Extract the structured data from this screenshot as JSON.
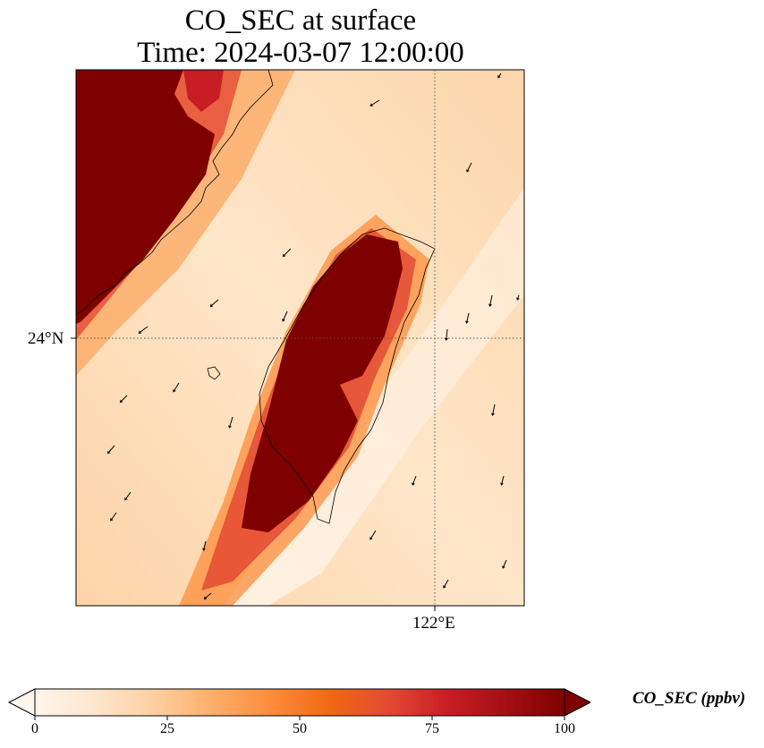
{
  "title": {
    "line1": "CO_SEC at surface",
    "line2": "Time: 2024-03-07 12:00:00"
  },
  "map": {
    "lat_label": "24°N",
    "lon_label": "122°E",
    "field_colormap": [
      "#fff5eb",
      "#fdd0a2",
      "#fdae6b",
      "#f16913",
      "#d94801",
      "#a50f15",
      "#7f0000"
    ],
    "coastline_color": "#000000",
    "gridline_style": "dotted"
  },
  "colorbar": {
    "title": "CO_SEC (ppbv)",
    "ticks": [
      "0",
      "25",
      "50",
      "75",
      "100"
    ],
    "min": 0,
    "max": 100,
    "extend": "both",
    "colors": [
      "#fff5eb",
      "#fee6ce",
      "#fdd0a2",
      "#fdae6b",
      "#fd8d3c",
      "#f16913",
      "#e34a33",
      "#c81d25",
      "#a50f15",
      "#7f0000"
    ]
  }
}
